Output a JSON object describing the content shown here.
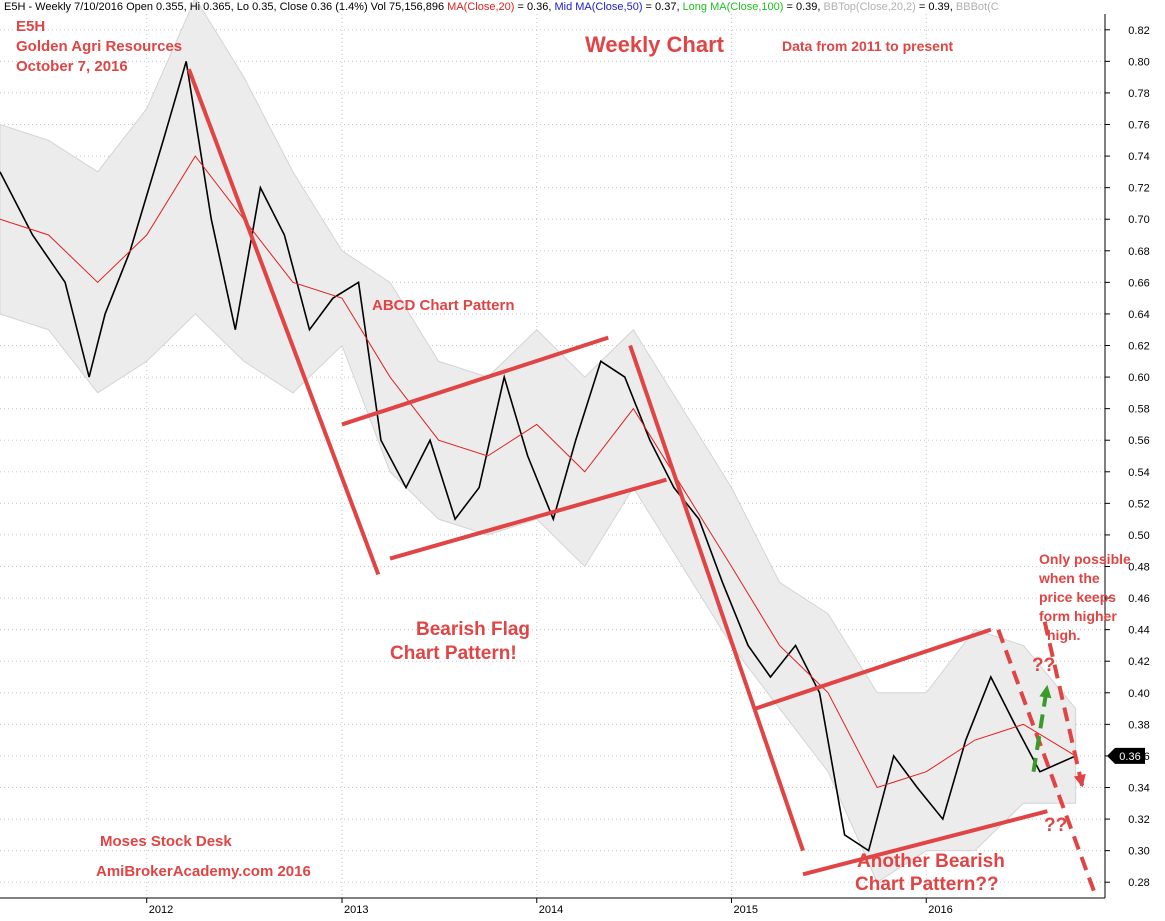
{
  "header": {
    "parts": [
      {
        "text": "E5H - Weekly 7/10/2016 Open 0.355, Hi 0.365, Lo 0.35, Close 0.36 (1.4%) Vol 75,156,896 ",
        "color": "#000000"
      },
      {
        "text": "MA(Close,20)",
        "color": "#e02020"
      },
      {
        "text": " = 0.36, ",
        "color": "#000000"
      },
      {
        "text": "Mid MA(Close,50)",
        "color": "#1a1ad0"
      },
      {
        "text": " = 0.37, ",
        "color": "#000000"
      },
      {
        "text": "Long MA(Close,100)",
        "color": "#20c020"
      },
      {
        "text": " = 0.39, ",
        "color": "#000000"
      },
      {
        "text": "BBTop(Close,20,2)",
        "color": "#b0b0b0"
      },
      {
        "text": " = 0.39, ",
        "color": "#000000"
      },
      {
        "text": "BBBot(C",
        "color": "#b0b0b0"
      }
    ]
  },
  "annotations": {
    "ticker": "E5H",
    "company": "Golden Agri Resources",
    "date": "October 7, 2016",
    "title": "Weekly Chart",
    "subtitle": "Data from 2011 to present",
    "abcd": "ABCD Chart Pattern",
    "bearish_flag_1": "Bearish Flag",
    "bearish_flag_2": "Chart Pattern!",
    "desk": "Moses Stock Desk",
    "site": "AmiBrokerAcademy.com  2016",
    "another_1": "Another Bearish",
    "another_2": "Chart Pattern??",
    "possible_1": "Only possible",
    "possible_2": "when the",
    "possible_3": "price keeps",
    "possible_4": "form higher",
    "possible_5": "high.",
    "q_up": "??",
    "q_down": "??"
  },
  "chart_data": {
    "type": "line",
    "ylim": [
      0.27,
      0.83
    ],
    "y_ticks": [
      0.82,
      0.8,
      0.78,
      0.76,
      0.74,
      0.72,
      0.7,
      0.68,
      0.66,
      0.64,
      0.62,
      0.6,
      0.58,
      0.56,
      0.54,
      0.52,
      0.5,
      0.48,
      0.46,
      0.44,
      0.42,
      0.4,
      0.38,
      0.36,
      0.34,
      0.32,
      0.3,
      0.28
    ],
    "x_ticks": [
      "2012",
      "2013",
      "2014",
      "2015",
      "2016"
    ],
    "x_tick_dates": [
      "2012-01-01",
      "2013-01-01",
      "2014-01-01",
      "2015-01-01",
      "2016-01-01"
    ],
    "current_price_label": "0.36",
    "current_price": 0.36,
    "price_series": {
      "name": "",
      "color": "#000000",
      "dates": [
        "2011-04-01",
        "2011-06-01",
        "2011-08-01",
        "2011-09-15",
        "2011-10-15",
        "2011-12-01",
        "2012-02-01",
        "2012-03-15",
        "2012-05-01",
        "2012-06-15",
        "2012-08-01",
        "2012-09-15",
        "2012-11-01",
        "2012-12-15",
        "2013-02-01",
        "2013-03-15",
        "2013-05-01",
        "2013-06-15",
        "2013-08-01",
        "2013-09-15",
        "2013-11-01",
        "2013-12-15",
        "2014-02-01",
        "2014-03-15",
        "2014-05-01",
        "2014-06-15",
        "2014-08-01",
        "2014-09-15",
        "2014-11-01",
        "2014-12-15",
        "2015-02-01",
        "2015-03-15",
        "2015-05-01",
        "2015-06-15",
        "2015-08-01",
        "2015-09-15",
        "2015-11-01",
        "2015-12-15",
        "2016-02-01",
        "2016-03-15",
        "2016-05-01",
        "2016-06-15",
        "2016-08-01",
        "2016-10-07"
      ],
      "values": [
        0.73,
        0.69,
        0.66,
        0.6,
        0.64,
        0.68,
        0.75,
        0.8,
        0.7,
        0.63,
        0.72,
        0.69,
        0.63,
        0.65,
        0.66,
        0.56,
        0.53,
        0.56,
        0.51,
        0.53,
        0.6,
        0.55,
        0.51,
        0.56,
        0.61,
        0.6,
        0.56,
        0.53,
        0.51,
        0.47,
        0.43,
        0.41,
        0.43,
        0.4,
        0.31,
        0.3,
        0.36,
        0.34,
        0.32,
        0.37,
        0.41,
        0.38,
        0.35,
        0.36
      ]
    },
    "ma20": {
      "name": "MA(Close,20)",
      "color": "#e02020",
      "dates": [
        "2011-04-01",
        "2011-07-01",
        "2011-10-01",
        "2012-01-01",
        "2012-04-01",
        "2012-07-01",
        "2012-10-01",
        "2013-01-01",
        "2013-04-01",
        "2013-07-01",
        "2013-10-01",
        "2014-01-01",
        "2014-04-01",
        "2014-07-01",
        "2014-10-01",
        "2015-01-01",
        "2015-04-01",
        "2015-07-01",
        "2015-10-01",
        "2016-01-01",
        "2016-04-01",
        "2016-07-01",
        "2016-10-07"
      ],
      "values": [
        0.7,
        0.69,
        0.66,
        0.69,
        0.74,
        0.7,
        0.66,
        0.65,
        0.6,
        0.56,
        0.55,
        0.57,
        0.54,
        0.58,
        0.53,
        0.48,
        0.43,
        0.4,
        0.34,
        0.35,
        0.37,
        0.38,
        0.36
      ]
    },
    "bb_band": {
      "name": "",
      "color": "#d8d8d8",
      "dates": [
        "2011-04-01",
        "2011-07-01",
        "2011-10-01",
        "2012-01-01",
        "2012-04-01",
        "2012-07-01",
        "2012-10-01",
        "2013-01-01",
        "2013-04-01",
        "2013-07-01",
        "2013-10-01",
        "2014-01-01",
        "2014-04-01",
        "2014-07-01",
        "2014-10-01",
        "2015-01-01",
        "2015-04-01",
        "2015-07-01",
        "2015-10-01",
        "2016-01-01",
        "2016-04-01",
        "2016-07-01",
        "2016-10-07"
      ],
      "upper": [
        0.76,
        0.75,
        0.73,
        0.77,
        0.84,
        0.79,
        0.73,
        0.68,
        0.66,
        0.61,
        0.6,
        0.63,
        0.6,
        0.63,
        0.58,
        0.53,
        0.47,
        0.45,
        0.4,
        0.4,
        0.44,
        0.43,
        0.39
      ],
      "lower": [
        0.64,
        0.63,
        0.59,
        0.61,
        0.64,
        0.61,
        0.59,
        0.62,
        0.54,
        0.51,
        0.5,
        0.51,
        0.48,
        0.53,
        0.48,
        0.43,
        0.39,
        0.35,
        0.28,
        0.3,
        0.3,
        0.33,
        0.33
      ]
    },
    "trendlines": [
      {
        "name": "flagpole-1",
        "style": "solid",
        "color": "#e04444",
        "from": [
          "2012-03-20",
          0.795
        ],
        "to": [
          "2013-03-10",
          0.475
        ]
      },
      {
        "name": "flag-1-upper",
        "style": "solid",
        "color": "#e04444",
        "from": [
          "2013-01-01",
          0.57
        ],
        "to": [
          "2014-05-15",
          0.625
        ]
      },
      {
        "name": "flag-1-lower",
        "style": "solid",
        "color": "#e04444",
        "from": [
          "2013-04-01",
          0.485
        ],
        "to": [
          "2014-09-01",
          0.535
        ]
      },
      {
        "name": "flagpole-2",
        "style": "solid",
        "color": "#e04444",
        "from": [
          "2014-06-25",
          0.62
        ],
        "to": [
          "2015-05-15",
          0.3
        ]
      },
      {
        "name": "flag-2-upper",
        "style": "solid",
        "color": "#e04444",
        "from": [
          "2015-02-15",
          0.39
        ],
        "to": [
          "2016-05-01",
          0.44
        ]
      },
      {
        "name": "flag-2-lower",
        "style": "solid",
        "color": "#e04444",
        "from": [
          "2015-05-15",
          0.285
        ],
        "to": [
          "2016-08-15",
          0.325
        ]
      },
      {
        "name": "projection-1",
        "style": "dashed",
        "color": "#e04444",
        "from": [
          "2016-05-15",
          0.44
        ],
        "to": [
          "2016-11-15",
          0.27
        ]
      },
      {
        "name": "projection-2",
        "style": "dashed",
        "color": "#e04444",
        "from": [
          "2016-08-10",
          0.445
        ],
        "to": [
          "2016-10-20",
          0.34
        ]
      },
      {
        "name": "breakout-arrow",
        "style": "dashed",
        "color": "#3a9a2a",
        "from": [
          "2016-07-20",
          0.35
        ],
        "to": [
          "2016-08-15",
          0.405
        ]
      }
    ]
  }
}
